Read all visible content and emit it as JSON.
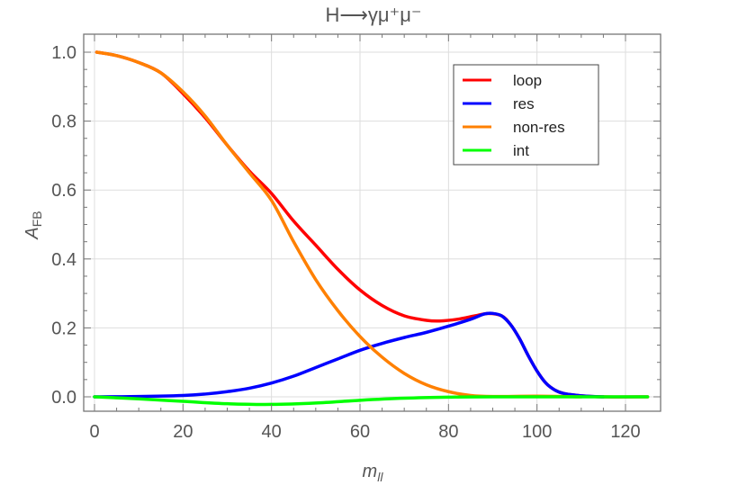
{
  "chart_data": {
    "type": "line",
    "title": "H⟶γμ⁺μ⁻",
    "xlabel": "m_ll",
    "ylabel": "A_FB",
    "xlim": [
      -2,
      127
    ],
    "ylim": [
      -0.04,
      1.05
    ],
    "xticks": [
      0,
      20,
      40,
      60,
      80,
      100,
      120
    ],
    "yticks": [
      0.0,
      0.2,
      0.4,
      0.6,
      0.8,
      1.0
    ],
    "ytick_labels": [
      "0.0",
      "0.2",
      "0.4",
      "0.6",
      "0.8",
      "1.0"
    ],
    "grid": true,
    "legend_position": "top-right",
    "series": [
      {
        "name": "loop",
        "color": "#ff0000",
        "x": [
          0.5,
          5,
          10,
          15,
          20,
          25,
          30,
          35,
          40,
          45,
          50,
          55,
          60,
          65,
          70,
          75,
          78,
          82,
          86,
          89,
          92,
          94,
          96,
          98,
          100,
          102,
          104,
          106,
          110,
          115,
          125
        ],
        "y": [
          1.0,
          0.99,
          0.97,
          0.94,
          0.88,
          0.81,
          0.73,
          0.655,
          0.59,
          0.51,
          0.44,
          0.37,
          0.31,
          0.265,
          0.235,
          0.222,
          0.22,
          0.225,
          0.235,
          0.242,
          0.235,
          0.21,
          0.17,
          0.12,
          0.075,
          0.04,
          0.02,
          0.01,
          0.003,
          0,
          0
        ]
      },
      {
        "name": "res",
        "color": "#0000ff",
        "x": [
          0,
          10,
          20,
          25,
          30,
          35,
          40,
          45,
          50,
          55,
          60,
          65,
          70,
          75,
          80,
          85,
          88,
          90,
          92,
          94,
          96,
          98,
          100,
          102,
          104,
          106,
          110,
          115
        ],
        "y": [
          0,
          0.001,
          0.004,
          0.008,
          0.015,
          0.025,
          0.04,
          0.06,
          0.085,
          0.11,
          0.135,
          0.155,
          0.172,
          0.187,
          0.205,
          0.225,
          0.24,
          0.242,
          0.235,
          0.21,
          0.17,
          0.12,
          0.075,
          0.04,
          0.02,
          0.01,
          0.003,
          0
        ]
      },
      {
        "name": "non-res",
        "color": "#ff8000",
        "x": [
          0.5,
          5,
          10,
          15,
          20,
          25,
          30,
          35,
          40,
          45,
          50,
          55,
          60,
          65,
          70,
          75,
          80,
          85,
          90,
          100,
          110
        ],
        "y": [
          1.0,
          0.99,
          0.97,
          0.94,
          0.885,
          0.815,
          0.73,
          0.65,
          0.57,
          0.45,
          0.34,
          0.25,
          0.175,
          0.115,
          0.068,
          0.035,
          0.015,
          0.004,
          0.001,
          0.002,
          0
        ]
      },
      {
        "name": "int",
        "color": "#00ff00",
        "x": [
          0,
          10,
          20,
          30,
          40,
          50,
          60,
          70,
          80,
          90,
          125
        ],
        "y": [
          0,
          -0.006,
          -0.013,
          -0.02,
          -0.022,
          -0.018,
          -0.01,
          -0.004,
          -0.001,
          0,
          0
        ]
      }
    ]
  }
}
